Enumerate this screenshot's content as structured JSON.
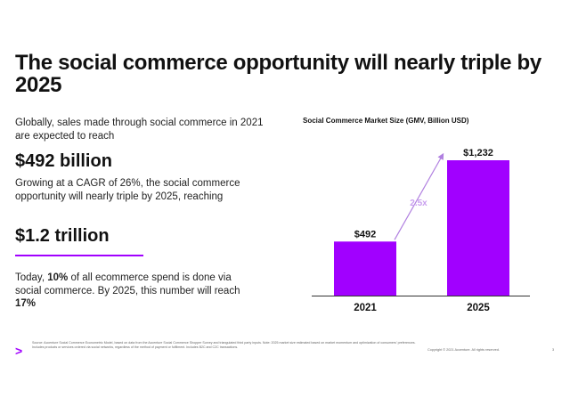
{
  "slide": {
    "title": "The social commerce opportunity will nearly triple by 2025",
    "intro_1": "Globally, sales made through social commerce in 2021 are expected to reach",
    "big_1": "$492 billion",
    "intro_2": "Growing at a CAGR of 26%, the social commerce opportunity will nearly triple by 2025, reaching",
    "big_2": "$1.2 trillion",
    "para_3_a": "Today, ",
    "para_3_b": "10%",
    "para_3_c": " of all ecommerce spend is done via social commerce. By 2025, this number will reach ",
    "para_3_d": "17%"
  },
  "footer": {
    "arrow": ">",
    "source": "Source: Accenture Social Commerce Econometric Model, based on data from the Accenture Social Commerce Shopper Survey and triangulated third party inputs. Note: 2025 market size estimated based on market momentum and optimization of consumers' preferences. Includes products or services ordered via social networks, regardless of the method of payment or fulfilment. Includes B2C and C2C transactions.",
    "copyright": "Copyright © 2021 Accenture. All rights reserved.",
    "page": "3"
  },
  "colors": {
    "accent": "#a100ff",
    "bar": "#a100ff",
    "growth_label": "#c9a0ef"
  },
  "chart_data": {
    "type": "bar",
    "title": "Social Commerce Market Size (GMV, Billion USD)",
    "categories": [
      "2021",
      "2025"
    ],
    "values": [
      492,
      1232
    ],
    "data_labels": [
      "$492",
      "$1,232"
    ],
    "annotation": "2.5x",
    "xlabel": "",
    "ylabel": "",
    "grid": false,
    "legend": "none"
  }
}
